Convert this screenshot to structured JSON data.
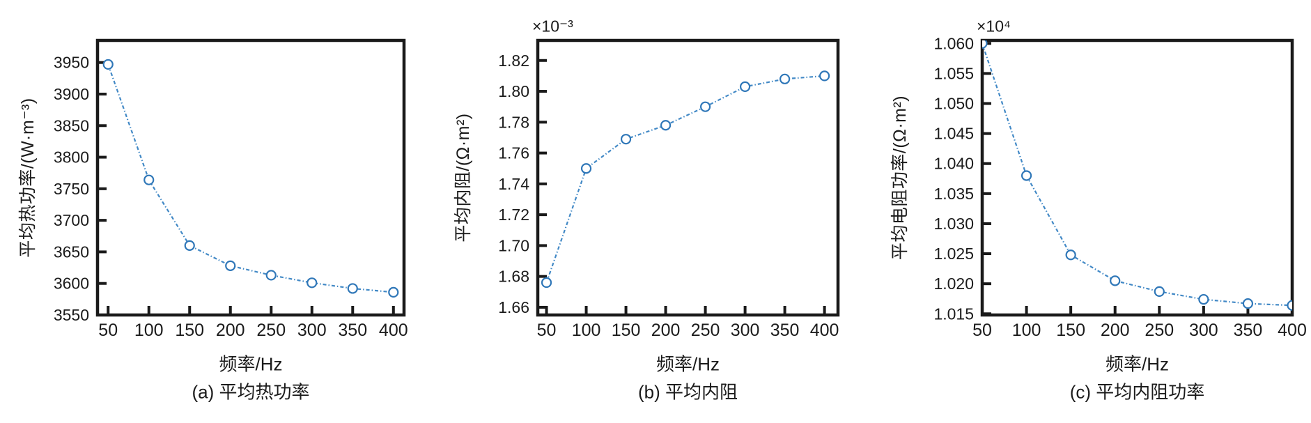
{
  "figure": {
    "background": "#ffffff",
    "text_color": "#1b1b1b",
    "axis_color": "#1a1a1a",
    "line_color": "#4289c6",
    "marker_color": "#2f77b8",
    "marker_fill": "#ffffff"
  },
  "chart_data": [
    {
      "type": "line",
      "panel": "a",
      "title": "(a) 平均热功率",
      "xlabel": "频率/Hz",
      "ylabel": "平均热功率/(W·m⁻³)",
      "y_exponent": "",
      "x": [
        50,
        100,
        150,
        200,
        250,
        300,
        350,
        400
      ],
      "values": [
        3947,
        3764,
        3660,
        3628,
        3613,
        3601,
        3592,
        3586
      ],
      "xticks": [
        50,
        100,
        150,
        200,
        250,
        300,
        350,
        400
      ],
      "xtick_labels": [
        "50",
        "100",
        "150",
        "200",
        "250",
        "300",
        "350",
        "400"
      ],
      "ytick_values": [
        3550,
        3600,
        3650,
        3700,
        3750,
        3800,
        3850,
        3900,
        3950
      ],
      "ytick_labels": [
        "3550",
        "3600",
        "3650",
        "3700",
        "3750",
        "3800",
        "3850",
        "3900",
        "3950"
      ],
      "xlim": [
        37,
        413
      ],
      "ylim": [
        3550,
        3985
      ],
      "grid": false,
      "legend": null,
      "marker": "open-circle",
      "line_style": "dash-dot",
      "tick_direction": "in",
      "box": true
    },
    {
      "type": "line",
      "panel": "b",
      "title": "(b) 平均内阻",
      "xlabel": "频率/Hz",
      "ylabel": "平均内阻/(Ω·m²)",
      "y_exponent": "×10⁻³",
      "x": [
        50,
        100,
        150,
        200,
        250,
        300,
        350,
        400
      ],
      "values": [
        1.676,
        1.75,
        1.769,
        1.778,
        1.79,
        1.803,
        1.808,
        1.81
      ],
      "xticks": [
        50,
        100,
        150,
        200,
        250,
        300,
        350,
        400
      ],
      "xtick_labels": [
        "50",
        "100",
        "150",
        "200",
        "250",
        "300",
        "350",
        "400"
      ],
      "ytick_values": [
        1.66,
        1.68,
        1.7,
        1.72,
        1.74,
        1.76,
        1.78,
        1.8,
        1.82
      ],
      "ytick_labels": [
        "1.66",
        "1.68",
        "1.70",
        "1.72",
        "1.74",
        "1.76",
        "1.78",
        "1.80",
        "1.82"
      ],
      "xlim": [
        39,
        417
      ],
      "ylim": [
        1.655,
        1.833
      ],
      "grid": false,
      "legend": null,
      "marker": "open-circle",
      "line_style": "dash-dot",
      "tick_direction": "in",
      "box": true
    },
    {
      "type": "line",
      "panel": "c",
      "title": "(c) 平均内阻功率",
      "xlabel": "频率/Hz",
      "ylabel": "平均电阻功率/(Ω·m²)",
      "y_exponent": "×10⁴",
      "x": [
        50,
        100,
        150,
        200,
        250,
        300,
        350,
        400
      ],
      "values": [
        1.06,
        1.038,
        1.0248,
        1.0205,
        1.0187,
        1.0174,
        1.0167,
        1.0164
      ],
      "xticks": [
        50,
        100,
        150,
        200,
        250,
        300,
        350,
        400
      ],
      "xtick_labels": [
        "50",
        "100",
        "150",
        "200",
        "250",
        "300",
        "350",
        "400"
      ],
      "ytick_values": [
        1.015,
        1.02,
        1.025,
        1.03,
        1.035,
        1.04,
        1.045,
        1.05,
        1.055,
        1.06
      ],
      "ytick_labels": [
        "1.015",
        "1.020",
        "1.025",
        "1.030",
        "1.035",
        "1.040",
        "1.045",
        "1.050",
        "1.055",
        "1.060"
      ],
      "xlim": [
        50,
        400
      ],
      "ylim": [
        1.0148,
        1.0605
      ],
      "grid": false,
      "legend": null,
      "marker": "open-circle",
      "line_style": "dash-dot",
      "tick_direction": "in",
      "box": true
    }
  ]
}
